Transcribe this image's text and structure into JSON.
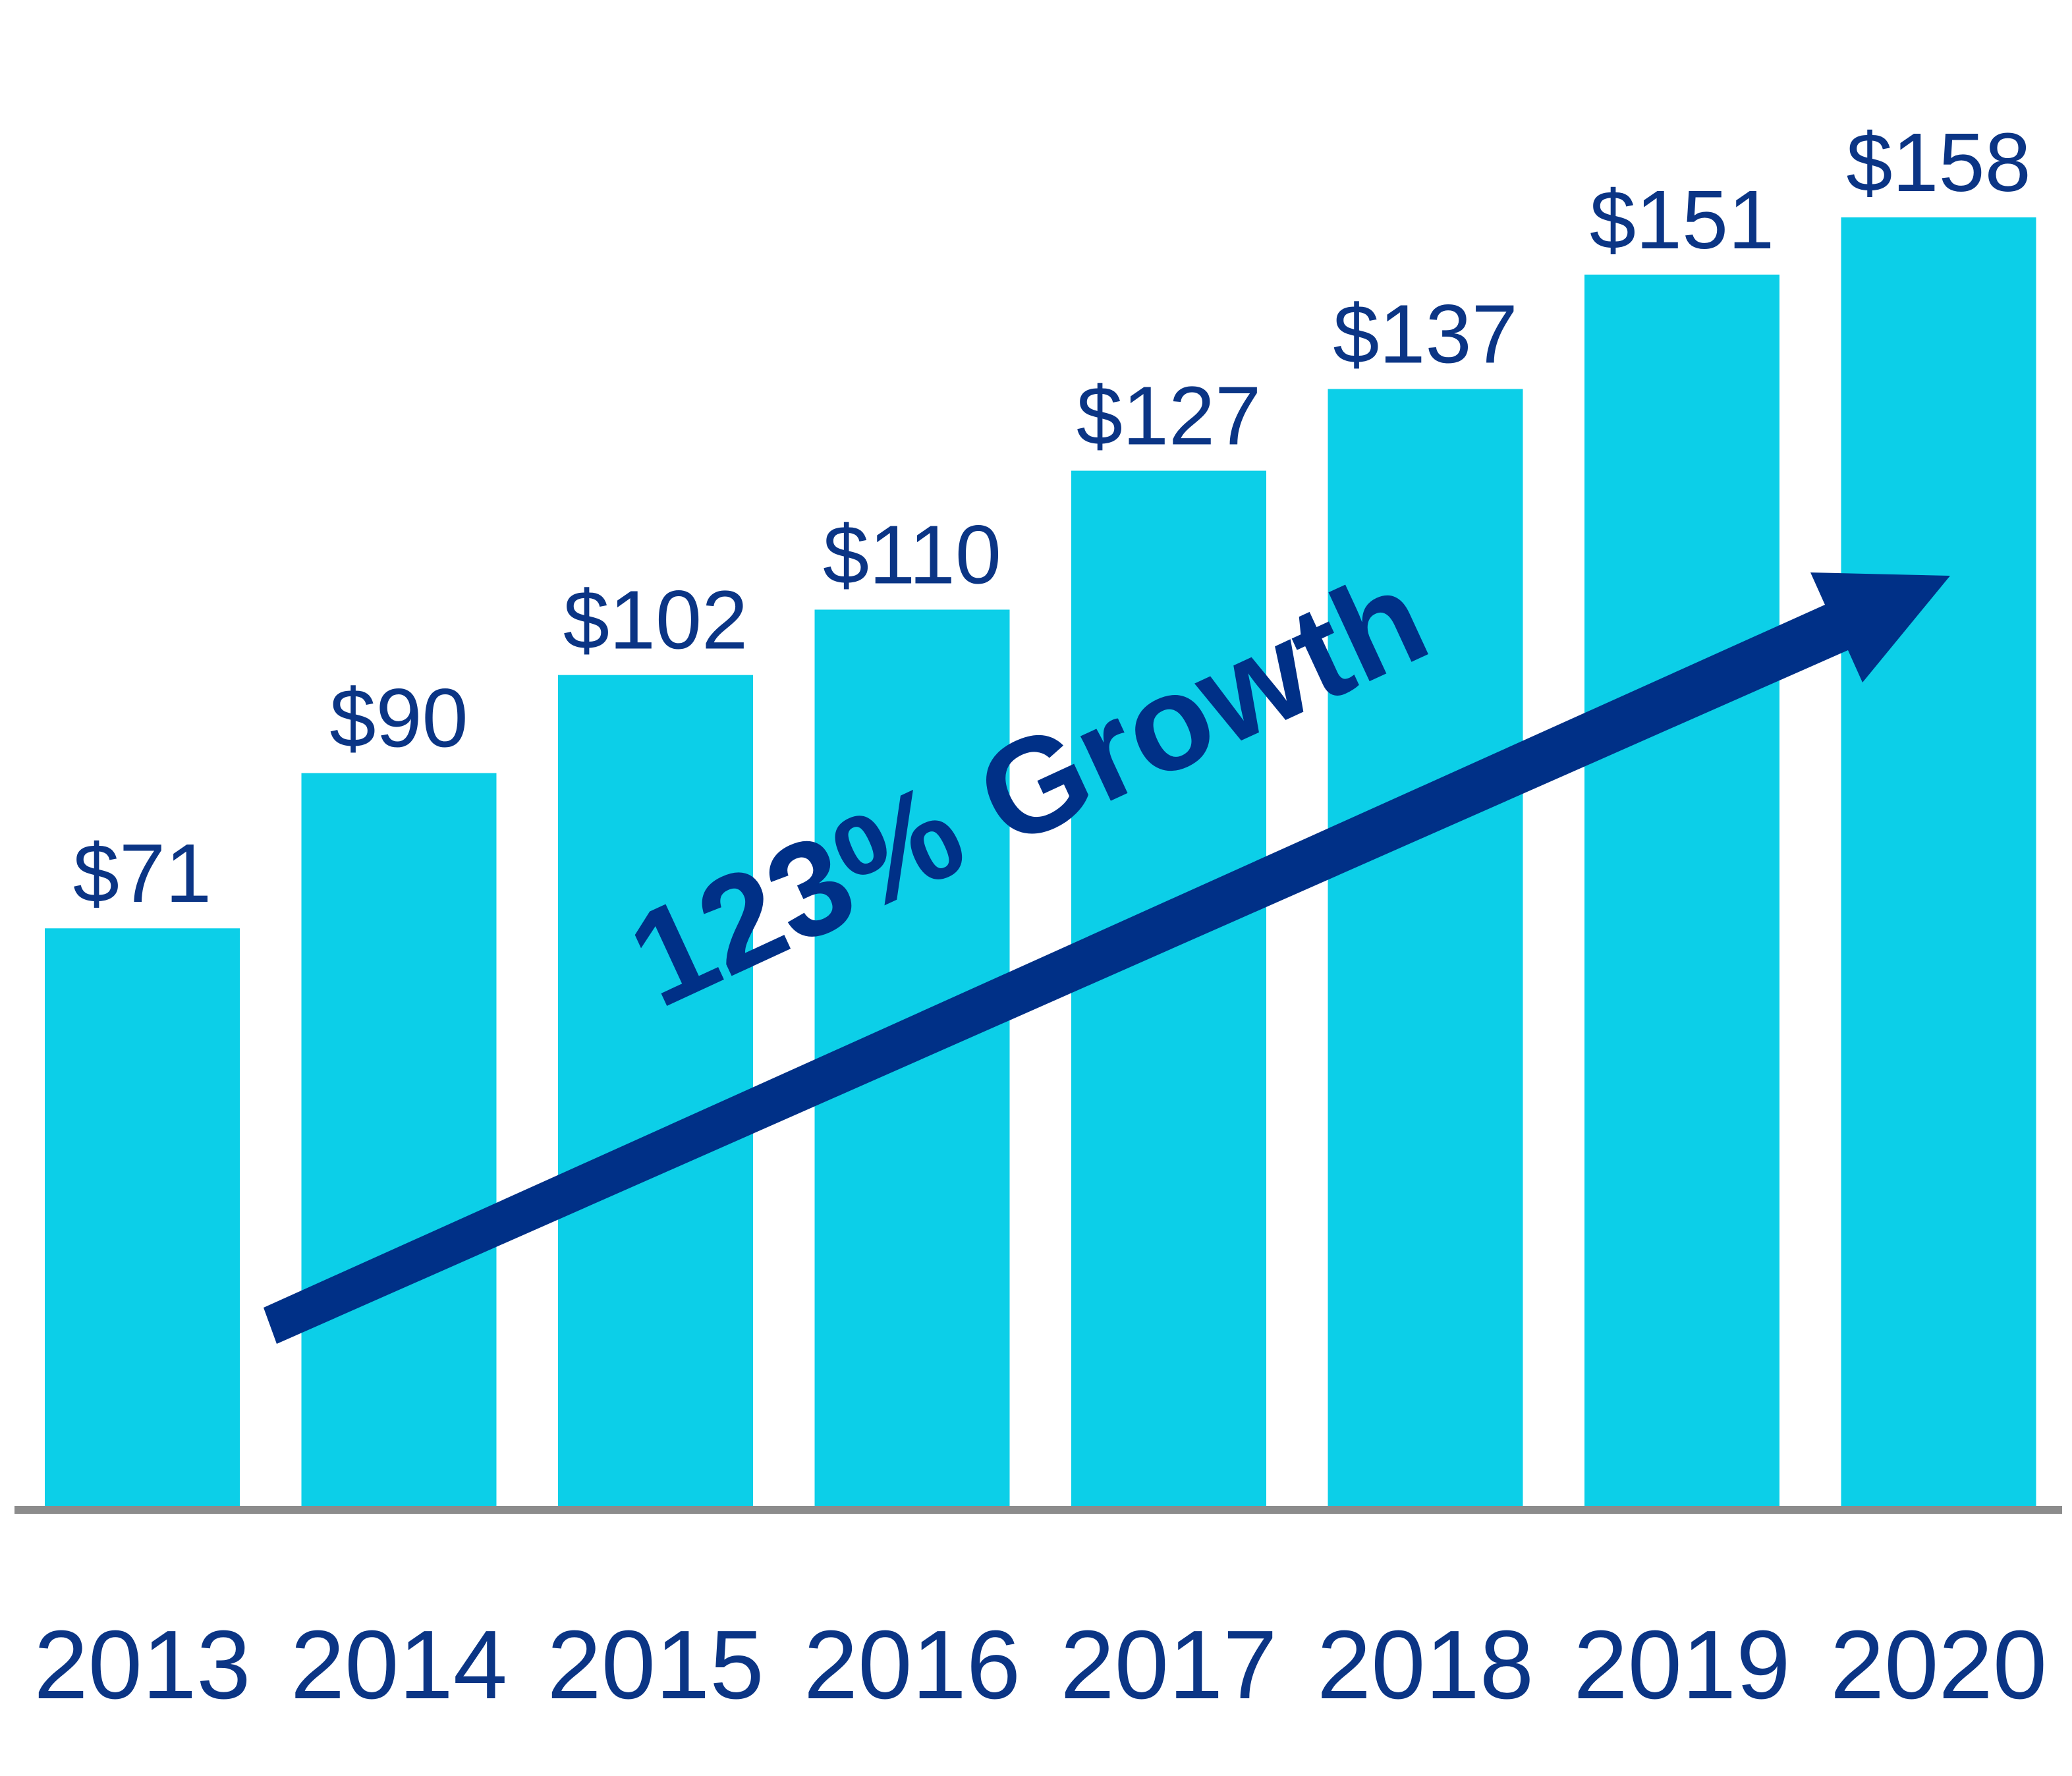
{
  "chart_data": {
    "type": "bar",
    "categories": [
      "2013",
      "2014",
      "2015",
      "2016",
      "2017",
      "2018",
      "2019",
      "2020"
    ],
    "values": [
      71,
      90,
      102,
      110,
      127,
      137,
      151,
      158
    ],
    "value_labels": [
      "$71",
      "$90",
      "$102",
      "$110",
      "$127",
      "$137",
      "$151",
      "$158"
    ],
    "title": "",
    "xlabel": "",
    "ylabel": "",
    "ylim": [
      0,
      158
    ],
    "grid": false,
    "annotations": [
      {
        "text": "123% Growth",
        "type": "trend-arrow"
      }
    ]
  },
  "colors": {
    "bar": "#0ccfe8",
    "text": "#0b3585",
    "arrow": "#003087",
    "axis": "#8c8c8c",
    "background": "#ffffff"
  }
}
